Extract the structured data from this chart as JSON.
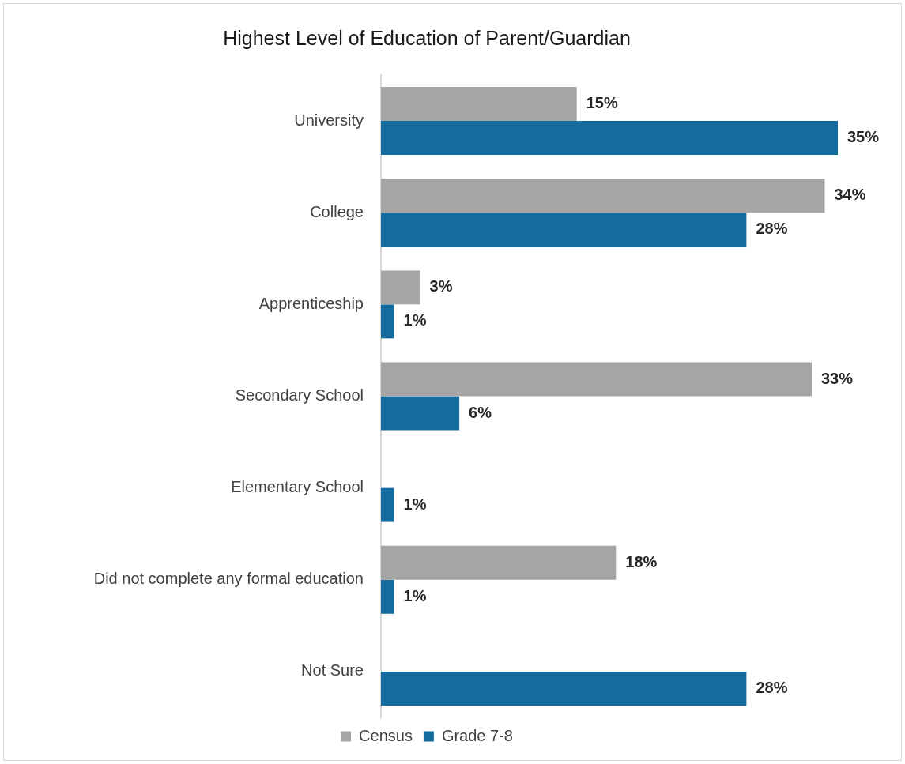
{
  "chart_data": {
    "type": "bar",
    "orientation": "horizontal",
    "title": "Highest Level of Education of Parent/Guardian",
    "categories": [
      "University",
      "College",
      "Apprenticeship",
      "Secondary School",
      "Elementary School",
      "Did not complete any formal education",
      "Not Sure"
    ],
    "series": [
      {
        "name": "Census",
        "color": "#a5a5a5",
        "values": [
          15,
          34,
          3,
          33,
          null,
          18,
          null
        ],
        "value_labels": [
          "15%",
          "34%",
          "3%",
          "33%",
          null,
          "18%",
          null
        ]
      },
      {
        "name": "Grade 7-8",
        "color": "#136b9e",
        "values": [
          35,
          28,
          1,
          6,
          1,
          1,
          28
        ],
        "value_labels": [
          "35%",
          "28%",
          "1%",
          "6%",
          "1%",
          "1%",
          "28%"
        ]
      }
    ],
    "tick_labels": "y",
    "grid": false,
    "legend": "bottom"
  }
}
